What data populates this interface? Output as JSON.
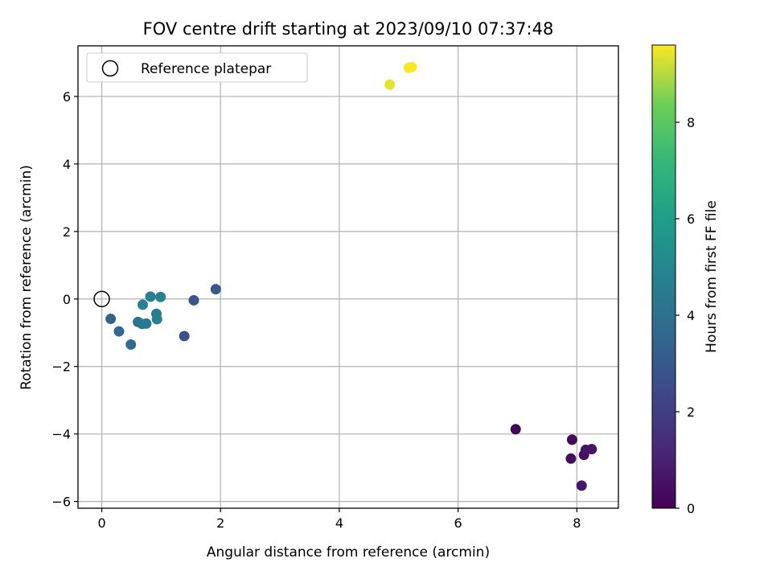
{
  "chart_data": {
    "type": "scatter",
    "title": "FOV centre drift starting at 2023/09/10 07:37:48",
    "xlabel": "Angular distance from reference (arcmin)",
    "ylabel": "Rotation from reference (arcmin)",
    "xlim": [
      -0.4,
      8.7
    ],
    "ylim": [
      -6.2,
      7.5
    ],
    "xticks": [
      0,
      2,
      4,
      6,
      8
    ],
    "yticks": [
      -6,
      -4,
      -2,
      0,
      2,
      4,
      6
    ],
    "grid": true,
    "legend": {
      "position": "top-left",
      "entries": [
        {
          "label": "Reference platepar",
          "marker": "open-circle"
        }
      ]
    },
    "reference_point": {
      "x": 0,
      "y": 0
    },
    "colorbar": {
      "label": "Hours from first FF file",
      "range": [
        0,
        9.6
      ],
      "ticks": [
        0,
        2,
        4,
        6,
        8
      ],
      "colormap": "viridis"
    },
    "points": [
      {
        "x": 6.97,
        "y": -3.86,
        "hours": 0.15
      },
      {
        "x": 7.92,
        "y": -4.17,
        "hours": 0.25
      },
      {
        "x": 7.9,
        "y": -4.73,
        "hours": 0.35
      },
      {
        "x": 8.12,
        "y": -4.62,
        "hours": 0.45
      },
      {
        "x": 8.15,
        "y": -4.47,
        "hours": 0.55
      },
      {
        "x": 8.25,
        "y": -4.45,
        "hours": 0.6
      },
      {
        "x": 8.08,
        "y": -5.53,
        "hours": 0.7
      },
      {
        "x": 1.39,
        "y": -1.1,
        "hours": 2.7
      },
      {
        "x": 1.55,
        "y": -0.04,
        "hours": 2.9
      },
      {
        "x": 1.92,
        "y": 0.29,
        "hours": 3.0
      },
      {
        "x": 0.15,
        "y": -0.59,
        "hours": 3.5
      },
      {
        "x": 0.29,
        "y": -0.96,
        "hours": 3.6
      },
      {
        "x": 0.49,
        "y": -1.35,
        "hours": 3.7
      },
      {
        "x": 0.61,
        "y": -0.68,
        "hours": 4.1
      },
      {
        "x": 0.68,
        "y": -0.74,
        "hours": 4.3
      },
      {
        "x": 0.75,
        "y": -0.73,
        "hours": 4.4
      },
      {
        "x": 0.69,
        "y": -0.17,
        "hours": 4.8
      },
      {
        "x": 0.82,
        "y": 0.07,
        "hours": 4.8
      },
      {
        "x": 0.92,
        "y": -0.44,
        "hours": 4.6
      },
      {
        "x": 0.93,
        "y": -0.6,
        "hours": 4.7
      },
      {
        "x": 0.99,
        "y": 0.06,
        "hours": 4.9
      },
      {
        "x": 4.85,
        "y": 6.35,
        "hours": 9.4
      },
      {
        "x": 5.17,
        "y": 6.85,
        "hours": 9.55
      },
      {
        "x": 5.22,
        "y": 6.87,
        "hours": 9.6
      }
    ]
  }
}
